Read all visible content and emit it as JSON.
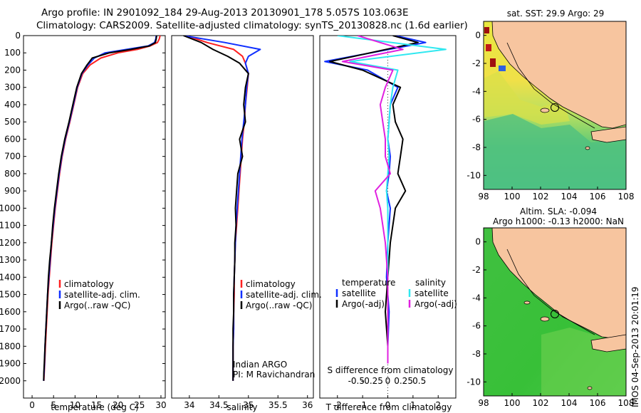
{
  "title": {
    "line1": "Argo profile: IN 2901092_184 29-Aug-2013 20130901_178 5.057S 103.063E",
    "line2": "Climatology: CARS2009. Satellite-adjusted climatology: synTS_20130828.nc (1.6d earlier)"
  },
  "colors": {
    "climatology": "#ff2020",
    "satellite": "#1030ff",
    "argo": "#000000",
    "sat_salinity": "#30e8f0",
    "argo_salinity": "#e020e0",
    "land": "#f7c59f"
  },
  "footer": {
    "credit": "IMOS 04-Sep-2013 20:01:19"
  },
  "legend_temp": [
    "climatology",
    "satellite-adj. clim.",
    "Argo(..raw -QC)"
  ],
  "legend_sal": [
    "climatology",
    "satellite-adj. clim.",
    "Argo(..raw -QC)"
  ],
  "legend_diff": {
    "temp_header": "temperature",
    "temp_items": [
      "satellite",
      "Argo(-adj)"
    ],
    "sal_header": "salinity",
    "sal_items": [
      "satellite",
      "Argo(-adj)"
    ]
  },
  "sal_annotation": [
    "Indian ARGO",
    "PI: M Ravichandran"
  ],
  "map_sst": {
    "title": "sat. SST: 29.9 Argo: 29"
  },
  "map_sla": {
    "title_line1": "Altim. SLA: -0.094",
    "title_line2": "Argo h1000: -0.13 h2000: NaN"
  },
  "chart_data": [
    {
      "type": "line",
      "name": "temperature profile",
      "xlabel": "temperature (deg C)",
      "ylabel": "",
      "xlim": [
        -2,
        31
      ],
      "ylim": [
        2100,
        0
      ],
      "xticks": [
        0,
        5,
        10,
        15,
        20,
        25,
        30
      ],
      "yticks": [
        0,
        100,
        200,
        300,
        400,
        500,
        600,
        700,
        800,
        900,
        1000,
        1100,
        1200,
        1300,
        1400,
        1500,
        1600,
        1700,
        1800,
        1900,
        2000
      ],
      "series": [
        {
          "name": "climatology",
          "color": "#ff2020",
          "x": [
            29.8,
            29.6,
            29.2,
            27.5,
            24.5,
            20.0,
            16.0,
            13.5,
            11.8,
            10.6,
            9.7,
            8.8,
            7.8,
            7.0,
            6.4,
            5.9,
            5.4,
            5.0,
            4.6,
            4.3,
            4.0,
            3.7,
            3.5,
            3.3,
            3.1,
            2.95,
            2.85,
            2.75
          ],
          "y": [
            0,
            20,
            40,
            60,
            80,
            100,
            130,
            170,
            220,
            300,
            400,
            500,
            600,
            700,
            800,
            900,
            1000,
            1100,
            1200,
            1300,
            1400,
            1500,
            1600,
            1700,
            1800,
            1900,
            1950,
            2000
          ]
        },
        {
          "name": "satellite-adj. clim.",
          "color": "#1030ff",
          "x": [
            28.9,
            28.8,
            28.5,
            27.0,
            22.0,
            17.0,
            14.5,
            13.0,
            11.6,
            10.5,
            9.6,
            8.7,
            7.7,
            6.9,
            6.3,
            5.8,
            5.3,
            4.9,
            4.5,
            4.2,
            3.9,
            3.6,
            3.4,
            3.2,
            3.0,
            2.9,
            2.8,
            2.7
          ],
          "y": [
            0,
            20,
            40,
            60,
            80,
            100,
            130,
            170,
            220,
            300,
            400,
            500,
            600,
            700,
            800,
            900,
            1000,
            1100,
            1200,
            1300,
            1400,
            1500,
            1600,
            1700,
            1800,
            1900,
            1950,
            2000
          ]
        },
        {
          "name": "Argo(..raw -QC)",
          "color": "#000000",
          "x": [
            29.0,
            28.9,
            28.7,
            27.3,
            23.0,
            18.0,
            14.0,
            12.8,
            11.5,
            10.4,
            9.5,
            8.6,
            7.6,
            6.8,
            6.2,
            5.7,
            5.2,
            4.8,
            4.5,
            4.1,
            3.8,
            3.6,
            3.4,
            3.2,
            3.0,
            2.85,
            2.75,
            2.7
          ],
          "y": [
            0,
            20,
            40,
            60,
            80,
            100,
            130,
            170,
            220,
            300,
            400,
            500,
            600,
            700,
            800,
            900,
            1000,
            1100,
            1200,
            1300,
            1400,
            1500,
            1600,
            1700,
            1800,
            1900,
            1950,
            2000
          ]
        }
      ]
    },
    {
      "type": "line",
      "name": "salinity profile",
      "xlabel": "salinity",
      "xlim": [
        33.7,
        36.1
      ],
      "ylim": [
        2100,
        0
      ],
      "xticks": [
        34,
        34.5,
        35,
        35.5,
        36
      ],
      "series": [
        {
          "name": "climatology",
          "color": "#ff2020",
          "x": [
            33.95,
            34.3,
            34.75,
            34.9,
            34.95,
            35.0,
            34.98,
            34.95,
            34.93,
            34.9,
            34.88,
            34.86,
            34.84,
            34.82,
            34.8,
            34.78,
            34.77,
            34.76,
            34.76,
            34.75,
            34.75,
            34.74,
            34.74,
            34.74,
            34.74,
            34.74
          ],
          "y": [
            0,
            40,
            80,
            120,
            160,
            220,
            300,
            400,
            500,
            600,
            700,
            800,
            900,
            1000,
            1100,
            1200,
            1300,
            1400,
            1500,
            1600,
            1700,
            1800,
            1900,
            1950,
            1980,
            2000
          ]
        },
        {
          "name": "satellite-adj. clim.",
          "color": "#1030ff",
          "x": [
            33.9,
            34.6,
            35.2,
            35.0,
            34.95,
            35.0,
            34.97,
            34.95,
            34.92,
            34.89,
            34.87,
            34.85,
            34.83,
            34.81,
            34.79,
            34.78,
            34.77,
            34.76,
            34.75,
            34.75,
            34.75,
            34.74,
            34.74,
            34.74,
            34.74,
            34.74
          ],
          "y": [
            0,
            40,
            80,
            120,
            160,
            220,
            300,
            400,
            500,
            600,
            700,
            800,
            900,
            1000,
            1100,
            1200,
            1300,
            1400,
            1500,
            1600,
            1700,
            1800,
            1900,
            1950,
            1980,
            2000
          ]
        },
        {
          "name": "Argo(..raw -QC)",
          "color": "#000000",
          "x": [
            33.9,
            34.2,
            34.4,
            34.65,
            34.85,
            35.0,
            34.95,
            34.92,
            34.95,
            34.85,
            34.9,
            34.82,
            34.8,
            34.78,
            34.79,
            34.77,
            34.77,
            34.76,
            34.75,
            34.75,
            34.74,
            34.74,
            34.74,
            34.74,
            34.74,
            34.74
          ],
          "y": [
            0,
            40,
            80,
            120,
            160,
            220,
            300,
            400,
            500,
            600,
            700,
            800,
            900,
            1000,
            1100,
            1200,
            1300,
            1400,
            1500,
            1600,
            1700,
            1800,
            1900,
            1950,
            1980,
            2000
          ]
        }
      ]
    },
    {
      "type": "line",
      "name": "difference from climatology",
      "xlabel": "T difference from climatology",
      "xlabel_top": "S difference from climatology",
      "xlim": [
        -2.7,
        2.7
      ],
      "ylim": [
        2100,
        0
      ],
      "xticks": [
        -2,
        -1,
        0,
        1,
        2
      ],
      "sticks": [
        -0.5,
        -0.25,
        0,
        0.25,
        0.5
      ],
      "series": [
        {
          "name": "temperature satellite",
          "color": "#1030ff",
          "x": [
            0.3,
            1.5,
            -2.5,
            -0.8,
            0.4,
            0.1,
            0.05,
            0.0,
            0.1,
            0.05,
            -0.05,
            0.1,
            0.0,
            -0.05,
            0.05,
            0.0,
            0.0
          ],
          "y": [
            0,
            40,
            150,
            200,
            300,
            400,
            500,
            600,
            700,
            800,
            900,
            1000,
            1200,
            1400,
            1600,
            1800,
            1900
          ]
        },
        {
          "name": "temperature Argo(-adj)",
          "color": "#000000",
          "x": [
            0.2,
            1.2,
            -2.3,
            -1.0,
            0.5,
            0.2,
            0.3,
            0.6,
            0.5,
            0.4,
            0.7,
            0.3,
            0.1,
            0.0,
            -0.1,
            0.0,
            0.0
          ],
          "y": [
            0,
            40,
            150,
            200,
            300,
            400,
            500,
            600,
            700,
            800,
            900,
            1000,
            1200,
            1400,
            1600,
            1800,
            1900
          ]
        },
        {
          "name": "salinity satellite",
          "color": "#30e8f0",
          "x": [
            -2.0,
            2.3,
            -1.5,
            0.4,
            0.2,
            0.1,
            0.05,
            0.0,
            0.05,
            0.0,
            -0.05,
            0.0,
            0.0,
            0.0,
            0.0,
            0.0,
            0.0
          ],
          "y": [
            0,
            80,
            150,
            200,
            300,
            400,
            500,
            600,
            700,
            800,
            900,
            1000,
            1200,
            1400,
            1600,
            1800,
            1900
          ]
        },
        {
          "name": "salinity Argo(-adj)",
          "color": "#e020e0",
          "x": [
            -1.2,
            0.6,
            -1.8,
            0.2,
            -0.1,
            -0.3,
            -0.2,
            -0.1,
            -0.1,
            0.1,
            -0.5,
            -0.3,
            -0.1,
            0.0,
            0.0,
            0.0,
            0.0
          ],
          "y": [
            0,
            80,
            150,
            200,
            300,
            400,
            500,
            600,
            700,
            800,
            900,
            1000,
            1200,
            1400,
            1600,
            1800,
            1900
          ]
        }
      ]
    },
    {
      "type": "heatmap",
      "name": "satellite SST map",
      "xlim": [
        98,
        108
      ],
      "ylim": [
        -11,
        1
      ],
      "xticks": [
        98,
        100,
        102,
        104,
        106,
        108
      ],
      "yticks": [
        0,
        -2,
        -4,
        -6,
        -8,
        -10
      ],
      "argo_position": {
        "lon": 103.063,
        "lat": -5.057
      }
    },
    {
      "type": "heatmap",
      "name": "altimetry SLA map",
      "xlim": [
        98,
        108
      ],
      "ylim": [
        -11,
        1
      ],
      "xticks": [
        98,
        100,
        102,
        104,
        106,
        108
      ],
      "yticks": [
        0,
        -2,
        -4,
        -6,
        -8,
        -10
      ],
      "argo_position": {
        "lon": 103.063,
        "lat": -5.057
      }
    }
  ]
}
